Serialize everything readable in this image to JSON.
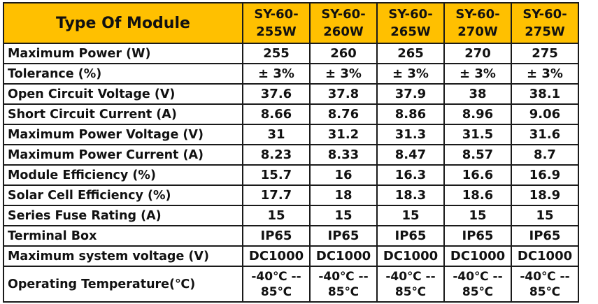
{
  "header": {
    "label": "Type Of Module",
    "models": [
      {
        "line1": "SY-60-",
        "line2": "255W"
      },
      {
        "line1": "SY-60-",
        "line2": "260W"
      },
      {
        "line1": "SY-60-",
        "line2": "265W"
      },
      {
        "line1": "SY-60-",
        "line2": "270W"
      },
      {
        "line1": "SY-60-",
        "line2": "275W"
      }
    ]
  },
  "rows": [
    {
      "label": "Maximum Power (W)",
      "values": [
        "255",
        "260",
        "265",
        "270",
        "275"
      ]
    },
    {
      "label": "Tolerance (%)",
      "values": [
        "± 3%",
        "± 3%",
        "± 3%",
        "± 3%",
        "± 3%"
      ]
    },
    {
      "label": "Open Circuit Voltage (V)",
      "values": [
        "37.6",
        "37.8",
        "37.9",
        "38",
        "38.1"
      ]
    },
    {
      "label": "Short Circuit Current (A)",
      "values": [
        "8.66",
        "8.76",
        "8.86",
        "8.96",
        "9.06"
      ]
    },
    {
      "label": "Maximum Power Voltage (V)",
      "values": [
        "31",
        "31.2",
        "31.3",
        "31.5",
        "31.6"
      ]
    },
    {
      "label": "Maximum Power Current (A)",
      "values": [
        "8.23",
        "8.33",
        "8.47",
        "8.57",
        "8.7"
      ]
    },
    {
      "label": "Module Efficiency (%)",
      "values": [
        "15.7",
        "16",
        "16.3",
        "16.6",
        "16.9"
      ]
    },
    {
      "label": "Solar Cell Efficiency (%)",
      "values": [
        "17.7",
        "18",
        "18.3",
        "18.6",
        "18.9"
      ]
    },
    {
      "label": "Series Fuse Rating (A)",
      "values": [
        "15",
        "15",
        "15",
        "15",
        "15"
      ]
    },
    {
      "label": "Terminal Box",
      "values": [
        "IP65",
        "IP65",
        "IP65",
        "IP65",
        "IP65"
      ]
    },
    {
      "label": "Maximum system voltage (V)",
      "values": [
        "DC1000",
        "DC1000",
        "DC1000",
        "DC1000",
        "DC1000"
      ]
    }
  ],
  "last_row": {
    "label": "Operating Temperature(℃)",
    "values": [
      {
        "line1": "-40℃ --",
        "line2": "85℃"
      },
      {
        "line1": "-40℃ --",
        "line2": "85℃"
      },
      {
        "line1": "-40℃ --",
        "line2": "85℃"
      },
      {
        "line1": "-40℃ --",
        "line2": "85℃"
      },
      {
        "line1": "-40℃ --",
        "line2": "85℃"
      }
    ]
  },
  "colors": {
    "header_background": "#ffc000",
    "border": "#1a1a1a",
    "text": "#111111"
  }
}
